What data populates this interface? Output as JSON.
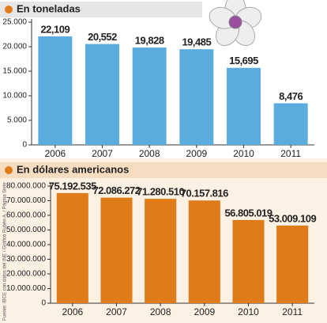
{
  "chart_data": [
    {
      "type": "bar",
      "title": "En toneladas",
      "categories": [
        "2006",
        "2007",
        "2008",
        "2009",
        "2010",
        "2011"
      ],
      "values": [
        22109,
        20552,
        19828,
        19485,
        15695,
        8476
      ],
      "value_labels": [
        "22,109",
        "20,552",
        "19,828",
        "19,485",
        "15,695",
        "8,476"
      ],
      "color": "#5aacdf",
      "ylim": [
        0,
        25000
      ],
      "yticks": [
        0,
        {
          "value": 5000,
          "label": "5.000"
        },
        {
          "value": 10000,
          "label": "10.000"
        },
        {
          "value": 15000,
          "label": "15.000"
        },
        {
          "value": 20000,
          "label": "20.000"
        },
        {
          "value": 25000,
          "label": "25.000"
        }
      ]
    },
    {
      "type": "bar",
      "title": "En dólares americanos",
      "categories": [
        "2006",
        "2007",
        "2008",
        "2009",
        "2010",
        "2011"
      ],
      "values": [
        75192535,
        72086272,
        71280510,
        70157816,
        56805019,
        53009109
      ],
      "value_labels": [
        "75.192.535",
        "72.086.272",
        "71.280.510",
        "70.157.816",
        "56.805.019",
        "53.009.109"
      ],
      "color": "#e07b1a",
      "ylim": [
        0,
        80000000
      ],
      "yticks": [
        0,
        {
          "value": 10000000,
          "label": "10.000.000"
        },
        {
          "value": 20000000,
          "label": "20.000.000"
        },
        {
          "value": 30000000,
          "label": "30.000.000"
        },
        {
          "value": 40000000,
          "label": "40.000.000"
        },
        {
          "value": 50000000,
          "label": "50.000.000"
        },
        {
          "value": 60000000,
          "label": "60.000.000"
        },
        {
          "value": 70000000,
          "label": "70.000.000"
        },
        {
          "value": 80000000,
          "label": "80.000.000"
        }
      ]
    }
  ],
  "source": "Fuente: IBCE con datos del INE / Gráfico Rubén A. / Página Siete"
}
